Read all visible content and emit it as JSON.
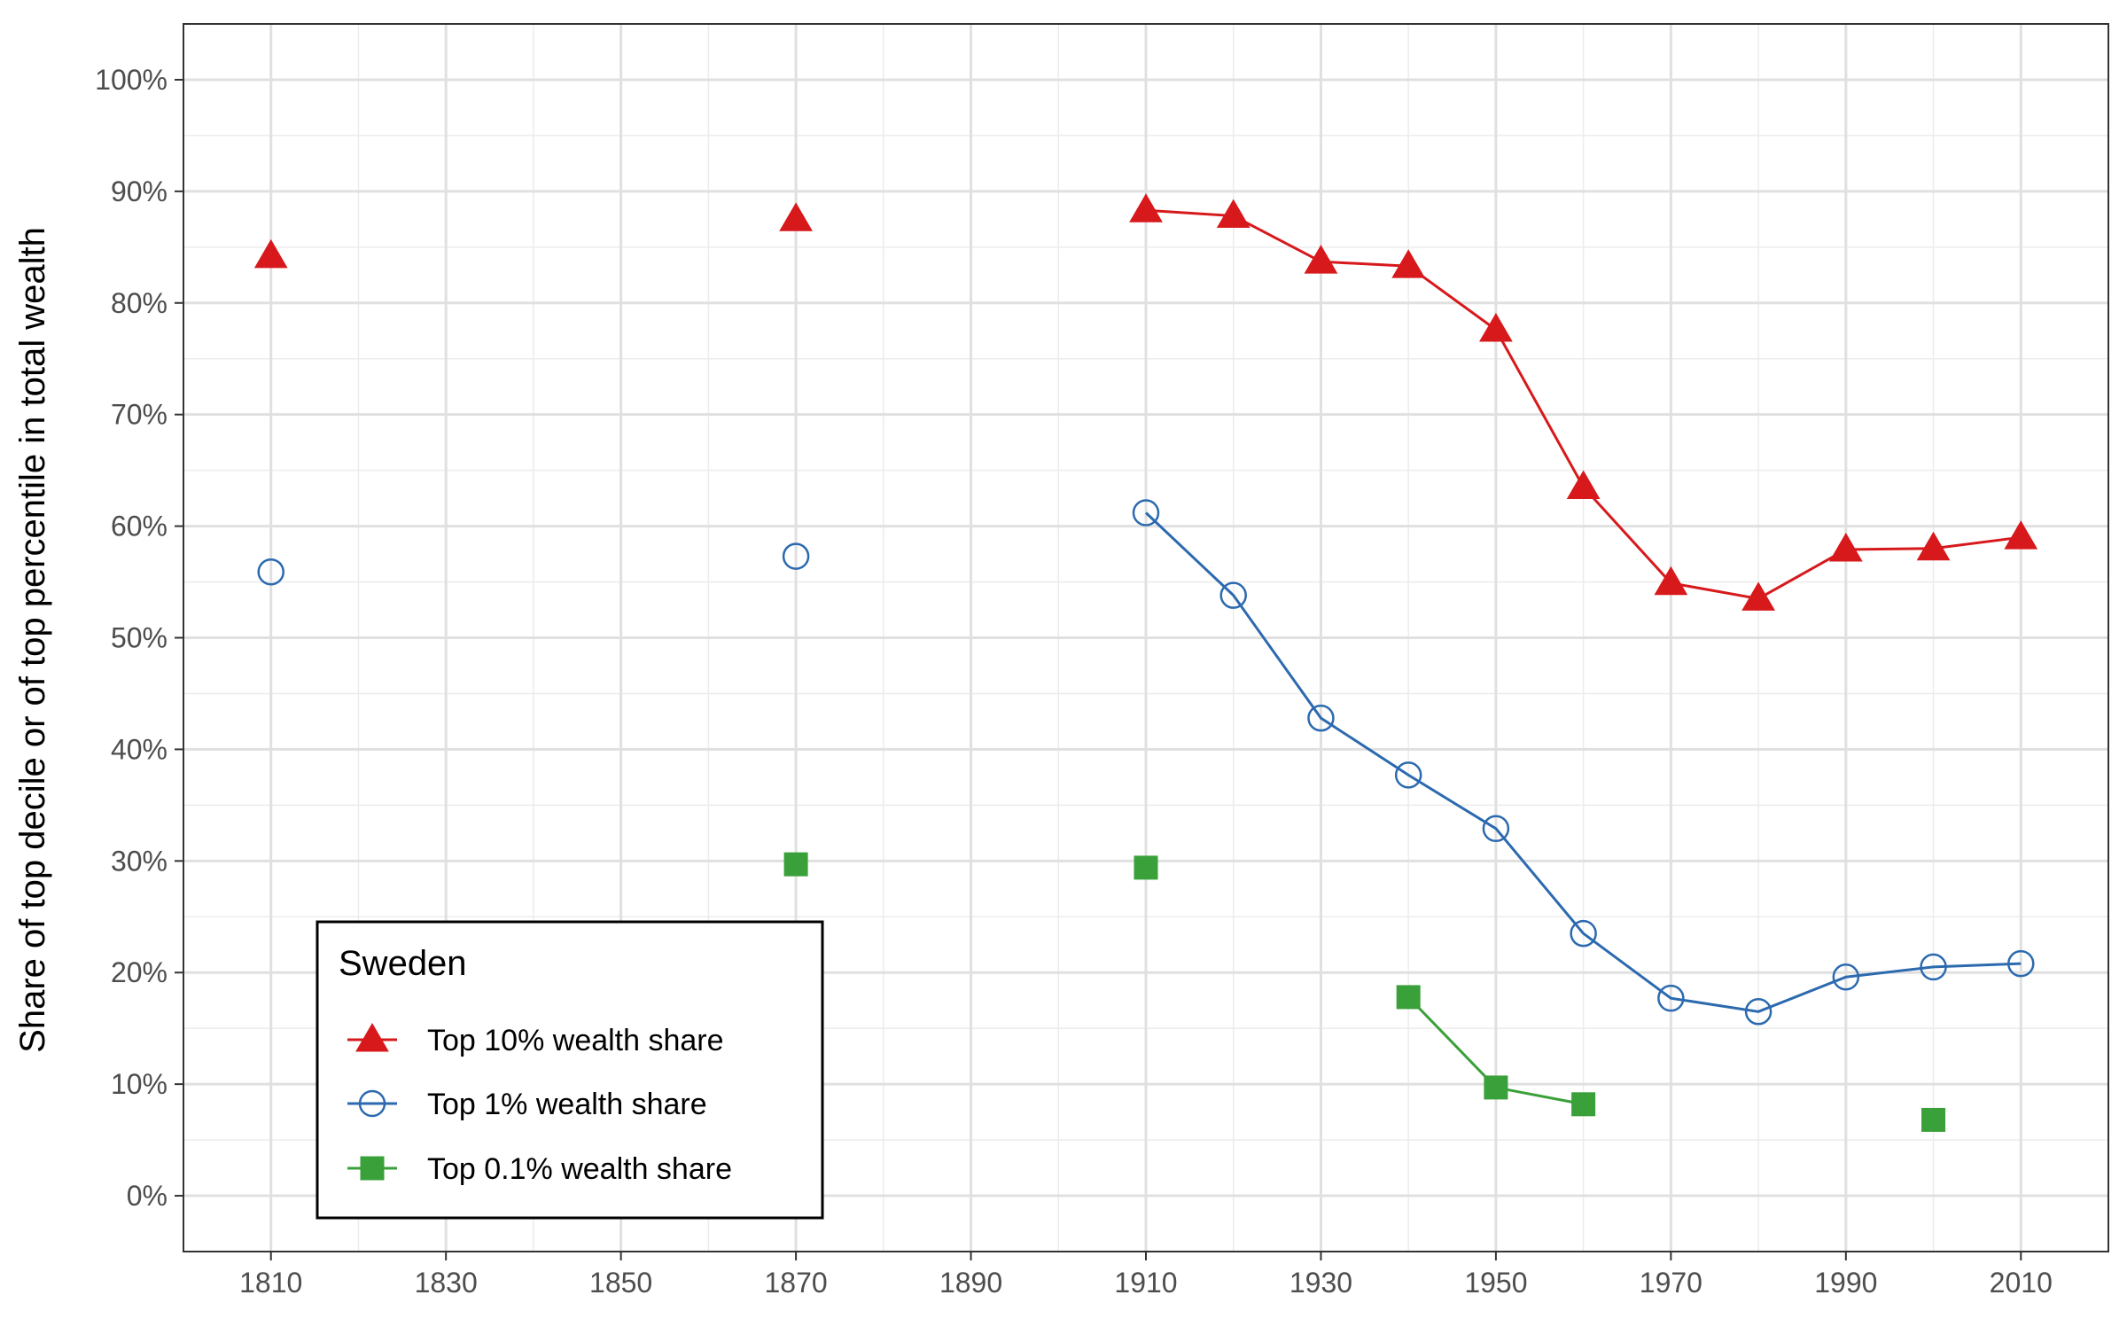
{
  "chart_data": {
    "type": "line",
    "title": "",
    "xlabel": "",
    "ylabel": "Share of top decile or of top percentile in total wealth",
    "xlim": [
      1800,
      2020
    ],
    "ylim": [
      -0.05,
      1.05
    ],
    "x_ticks": [
      1810,
      1830,
      1850,
      1870,
      1890,
      1910,
      1930,
      1950,
      1970,
      1990,
      2010
    ],
    "x_tick_labels": [
      "1810",
      "1830",
      "1850",
      "1870",
      "1890",
      "1910",
      "1930",
      "1950",
      "1970",
      "1990",
      "2010"
    ],
    "y_ticks": [
      0,
      0.1,
      0.2,
      0.3,
      0.4,
      0.5,
      0.6,
      0.7,
      0.8,
      0.9,
      1.0
    ],
    "y_tick_labels": [
      "0%",
      "10%",
      "20%",
      "30%",
      "40%",
      "50%",
      "60%",
      "70%",
      "80%",
      "90%",
      "100%"
    ],
    "grid": true,
    "legend": {
      "title": "Sweden",
      "placement": "bottom-left"
    },
    "series": [
      {
        "name": "Top 10% wealth share",
        "color": "#d7191c",
        "marker": "triangle-filled",
        "points": [
          {
            "x": 1810,
            "y": 0.842
          },
          {
            "x": 1870,
            "y": 0.875
          },
          {
            "x": 1910,
            "y": 0.883
          },
          {
            "x": 1920,
            "y": 0.878
          },
          {
            "x": 1930,
            "y": 0.837
          },
          {
            "x": 1940,
            "y": 0.833
          },
          {
            "x": 1950,
            "y": 0.776
          },
          {
            "x": 1960,
            "y": 0.635
          },
          {
            "x": 1970,
            "y": 0.549
          },
          {
            "x": 1980,
            "y": 0.535
          },
          {
            "x": 1990,
            "y": 0.579
          },
          {
            "x": 2000,
            "y": 0.58
          },
          {
            "x": 2010,
            "y": 0.59
          }
        ],
        "connected_from_x": 1910
      },
      {
        "name": "Top 1% wealth share",
        "color": "#2c6aaf",
        "marker": "circle-open",
        "points": [
          {
            "x": 1810,
            "y": 0.559
          },
          {
            "x": 1870,
            "y": 0.573
          },
          {
            "x": 1910,
            "y": 0.612
          },
          {
            "x": 1920,
            "y": 0.538
          },
          {
            "x": 1930,
            "y": 0.428
          },
          {
            "x": 1940,
            "y": 0.377
          },
          {
            "x": 1950,
            "y": 0.329
          },
          {
            "x": 1960,
            "y": 0.235
          },
          {
            "x": 1970,
            "y": 0.177
          },
          {
            "x": 1980,
            "y": 0.165
          },
          {
            "x": 1990,
            "y": 0.196
          },
          {
            "x": 2000,
            "y": 0.205
          },
          {
            "x": 2010,
            "y": 0.208
          }
        ],
        "connected_from_x": 1910
      },
      {
        "name": "Top 0.1% wealth share",
        "color": "#3aa03a",
        "marker": "square-filled",
        "points": [
          {
            "x": 1870,
            "y": 0.297
          },
          {
            "x": 1910,
            "y": 0.294
          },
          {
            "x": 1940,
            "y": 0.178
          },
          {
            "x": 1950,
            "y": 0.097
          },
          {
            "x": 1960,
            "y": 0.082
          },
          {
            "x": 2000,
            "y": 0.068
          }
        ],
        "connected_segments": [
          [
            1940,
            1950,
            1960
          ]
        ]
      }
    ]
  }
}
